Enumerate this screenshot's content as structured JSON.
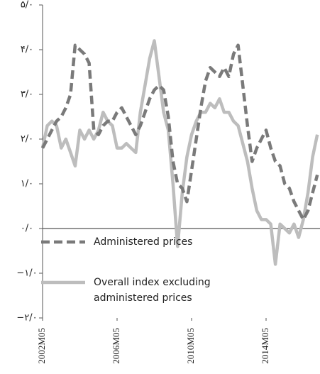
{
  "chart_data": {
    "type": "line",
    "categories": [
      "2002M05",
      null,
      null,
      null,
      null,
      null,
      null,
      null,
      null,
      null,
      null,
      null,
      null,
      null,
      null,
      null,
      "2006M05",
      null,
      null,
      null,
      null,
      null,
      null,
      null,
      null,
      null,
      null,
      null,
      null,
      null,
      null,
      null,
      "2010M05",
      null,
      null,
      null,
      null,
      null,
      null,
      null,
      null,
      null,
      null,
      null,
      null,
      null,
      null,
      null,
      "2014M05",
      null,
      null,
      null,
      null,
      null,
      null,
      null,
      null,
      null,
      null,
      null
    ],
    "series": [
      {
        "name": "Administered prices",
        "color": "#7a7a7a",
        "dash": true,
        "values": [
          1.8,
          2.0,
          2.2,
          2.4,
          2.5,
          2.7,
          3.0,
          4.1,
          4.0,
          3.9,
          3.7,
          2.2,
          2.1,
          2.3,
          2.4,
          2.4,
          2.6,
          2.7,
          2.5,
          2.3,
          2.1,
          2.3,
          2.6,
          2.9,
          3.1,
          3.2,
          3.1,
          2.5,
          1.5,
          1.0,
          0.9,
          0.6,
          1.3,
          2.0,
          2.7,
          3.3,
          3.6,
          3.5,
          3.4,
          3.6,
          3.4,
          3.9,
          4.1,
          3.2,
          2.3,
          1.5,
          1.8,
          2.0,
          2.2,
          1.8,
          1.5,
          1.4,
          1.0,
          0.9,
          0.6,
          0.4,
          0.2,
          0.4,
          0.8,
          1.2
        ]
      },
      {
        "name": "Overall index excluding administered prices",
        "color": "#bdbdbd",
        "dash": false,
        "values": [
          1.8,
          2.3,
          2.4,
          2.3,
          1.8,
          2.0,
          1.7,
          1.4,
          2.2,
          2.0,
          2.2,
          2.0,
          2.2,
          2.6,
          2.4,
          2.3,
          1.8,
          1.8,
          1.9,
          1.8,
          1.7,
          2.6,
          3.2,
          3.8,
          4.2,
          3.4,
          2.6,
          2.2,
          1.0,
          -0.4,
          0.8,
          1.6,
          2.1,
          2.4,
          2.6,
          2.6,
          2.8,
          2.7,
          2.9,
          2.6,
          2.6,
          2.4,
          2.3,
          1.9,
          1.5,
          0.9,
          0.4,
          0.2,
          0.2,
          0.1,
          -0.8,
          0.1,
          0.0,
          -0.1,
          0.1,
          -0.2,
          0.2,
          0.8,
          1.6,
          2.1
        ]
      }
    ],
    "ylim": [
      -2,
      5
    ],
    "yticks": [
      {
        "value": 5,
        "label": "۵/۰"
      },
      {
        "value": 4,
        "label": "۴/۰"
      },
      {
        "value": 3,
        "label": "۳/۰"
      },
      {
        "value": 2,
        "label": "۲/۰"
      },
      {
        "value": 1,
        "label": "۱/۰"
      },
      {
        "value": 0,
        "label": "۰/۰"
      },
      {
        "value": -1,
        "label": "−۱/۰"
      },
      {
        "value": -2,
        "label": "−۲/۰"
      }
    ]
  }
}
